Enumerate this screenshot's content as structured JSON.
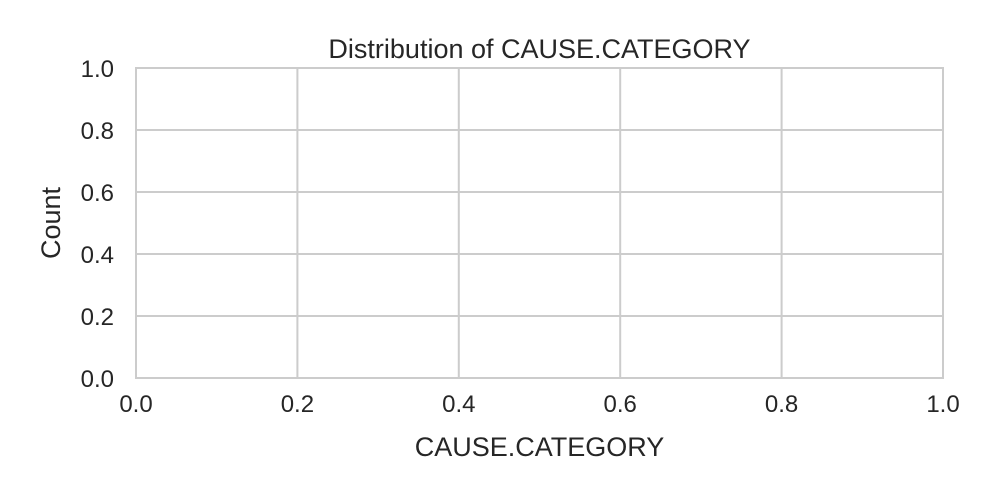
{
  "chart_data": {
    "type": "bar",
    "title": "Distribution of CAUSE.CATEGORY",
    "xlabel": "CAUSE.CATEGORY",
    "ylabel": "Count",
    "categories": [],
    "values": [],
    "xlim": [
      0,
      1
    ],
    "ylim": [
      0,
      1
    ],
    "xticks": [
      "0.0",
      "0.2",
      "0.4",
      "0.6",
      "0.8",
      "1.0"
    ],
    "yticks": [
      "0.0",
      "0.2",
      "0.4",
      "0.6",
      "0.8",
      "1.0"
    ],
    "grid": true,
    "legend": "none"
  },
  "colors": {
    "grid": "#cccccc",
    "spine": "#cccccc",
    "text": "#262626",
    "background": "#ffffff"
  }
}
